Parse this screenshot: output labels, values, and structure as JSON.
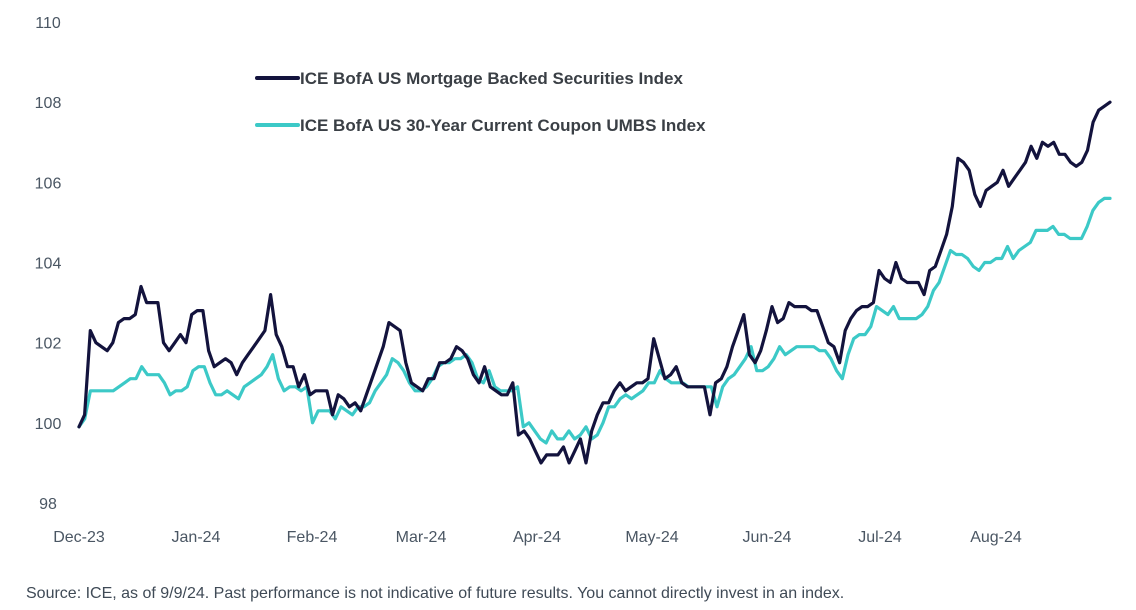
{
  "chart_data": {
    "type": "line",
    "ylim": [
      98,
      110
    ],
    "yticks": [
      "98",
      "100",
      "102",
      "104",
      "106",
      "108",
      "110"
    ],
    "ytick_values": [
      98,
      100,
      102,
      104,
      106,
      108,
      110
    ],
    "xticks": [
      "Dec-23",
      "Jan-24",
      "Feb-24",
      "Mar-24",
      "Apr-24",
      "May-24",
      "Jun-24",
      "Jul-24",
      "Aug-24"
    ],
    "grid": false,
    "legend_position": "top-left",
    "series": [
      {
        "name": "ICE BofA US Mortgage Backed Securities Index",
        "color": "#13133d",
        "values": [
          99.9,
          100.2,
          102.3,
          102.0,
          101.9,
          101.8,
          102.0,
          102.5,
          102.6,
          102.6,
          102.7,
          103.4,
          103.0,
          103.0,
          103.0,
          102.0,
          101.8,
          102.0,
          102.2,
          102.0,
          102.7,
          102.8,
          102.8,
          101.8,
          101.4,
          101.5,
          101.6,
          101.5,
          101.2,
          101.5,
          101.7,
          101.9,
          102.1,
          102.3,
          103.2,
          102.2,
          101.9,
          101.4,
          101.4,
          100.9,
          101.2,
          100.7,
          100.8,
          100.8,
          100.8,
          100.2,
          100.7,
          100.6,
          100.4,
          100.5,
          100.3,
          100.7,
          101.1,
          101.5,
          101.9,
          102.5,
          102.4,
          102.3,
          101.5,
          101.0,
          100.9,
          100.8,
          101.1,
          101.1,
          101.5,
          101.5,
          101.6,
          101.9,
          101.8,
          101.6,
          101.2,
          101.0,
          101.4,
          100.9,
          100.8,
          100.7,
          100.7,
          101.0,
          99.7,
          99.8,
          99.6,
          99.3,
          99.0,
          99.2,
          99.2,
          99.2,
          99.4,
          99.0,
          99.3,
          99.6,
          99.0,
          99.8,
          100.2,
          100.5,
          100.5,
          100.8,
          101.0,
          100.8,
          100.9,
          101.0,
          101.0,
          101.1,
          102.1,
          101.6,
          101.1,
          101.2,
          101.4,
          101.0,
          100.9,
          100.9,
          100.9,
          100.9,
          100.2,
          101.0,
          101.1,
          101.4,
          101.9,
          102.3,
          102.7,
          101.7,
          101.5,
          101.8,
          102.3,
          102.9,
          102.5,
          102.6,
          103.0,
          102.9,
          102.9,
          102.9,
          102.8,
          102.8,
          102.4,
          102.0,
          101.9,
          101.5,
          102.3,
          102.6,
          102.8,
          102.9,
          102.9,
          103.0,
          103.8,
          103.6,
          103.5,
          104.0,
          103.6,
          103.5,
          103.5,
          103.5,
          103.2,
          103.8,
          103.9,
          104.3,
          104.7,
          105.4,
          106.6,
          106.5,
          106.3,
          105.7,
          105.4,
          105.8,
          105.9,
          106.0,
          106.3,
          105.9,
          106.1,
          106.3,
          106.5,
          106.9,
          106.6,
          107.0,
          106.9,
          107.0,
          106.7,
          106.7,
          106.5,
          106.4,
          106.5,
          106.8,
          107.5,
          107.8,
          107.9,
          108.0
        ],
        "end_point": [
          1110,
          103
        ]
      },
      {
        "name": "ICE BofA US 30-Year Current Coupon UMBS Index",
        "color": "#3cc9c7",
        "values": [
          99.9,
          100.1,
          100.8,
          100.8,
          100.8,
          100.8,
          100.8,
          100.9,
          101.0,
          101.1,
          101.1,
          101.4,
          101.2,
          101.2,
          101.2,
          101.0,
          100.7,
          100.8,
          100.8,
          100.9,
          101.3,
          101.4,
          101.4,
          101.0,
          100.7,
          100.7,
          100.8,
          100.7,
          100.6,
          100.9,
          101.0,
          101.1,
          101.2,
          101.4,
          101.7,
          101.1,
          100.8,
          100.9,
          100.9,
          100.8,
          100.9,
          100.0,
          100.3,
          100.3,
          100.3,
          100.1,
          100.4,
          100.3,
          100.2,
          100.4,
          100.4,
          100.5,
          100.8,
          101.0,
          101.2,
          101.6,
          101.5,
          101.3,
          101.0,
          100.8,
          100.8,
          100.9,
          101.1,
          101.4,
          101.5,
          101.5,
          101.6,
          101.6,
          101.7,
          101.5,
          101.1,
          101.0,
          101.3,
          100.9,
          100.8,
          100.8,
          100.8,
          100.9,
          99.9,
          100.0,
          99.8,
          99.6,
          99.5,
          99.8,
          99.6,
          99.6,
          99.8,
          99.6,
          99.7,
          99.9,
          99.6,
          99.7,
          100.0,
          100.4,
          100.4,
          100.6,
          100.7,
          100.6,
          100.7,
          100.8,
          101.0,
          101.0,
          101.3,
          101.1,
          101.0,
          101.0,
          101.0,
          100.9,
          100.9,
          100.9,
          100.9,
          100.9,
          100.4,
          100.9,
          101.1,
          101.2,
          101.4,
          101.6,
          101.9,
          101.3,
          101.3,
          101.4,
          101.6,
          101.9,
          101.7,
          101.8,
          101.9,
          101.9,
          101.9,
          101.9,
          101.8,
          101.8,
          101.6,
          101.3,
          101.1,
          101.7,
          102.1,
          102.2,
          102.2,
          102.4,
          102.9,
          102.8,
          102.7,
          102.9,
          102.6,
          102.6,
          102.6,
          102.6,
          102.7,
          102.9,
          103.3,
          103.5,
          103.9,
          104.3,
          104.2,
          104.2,
          104.1,
          103.9,
          103.8,
          104.0,
          104.0,
          104.1,
          104.1,
          104.4,
          104.1,
          104.3,
          104.4,
          104.5,
          104.8,
          104.8,
          104.8,
          104.9,
          104.7,
          104.7,
          104.6,
          104.6,
          104.6,
          104.9,
          105.3,
          105.5,
          105.6,
          105.6
        ]
      }
    ]
  },
  "source_note": "Source: ICE, as of 9/9/24. Past performance is not indicative of future results. You cannot directly invest in an index."
}
